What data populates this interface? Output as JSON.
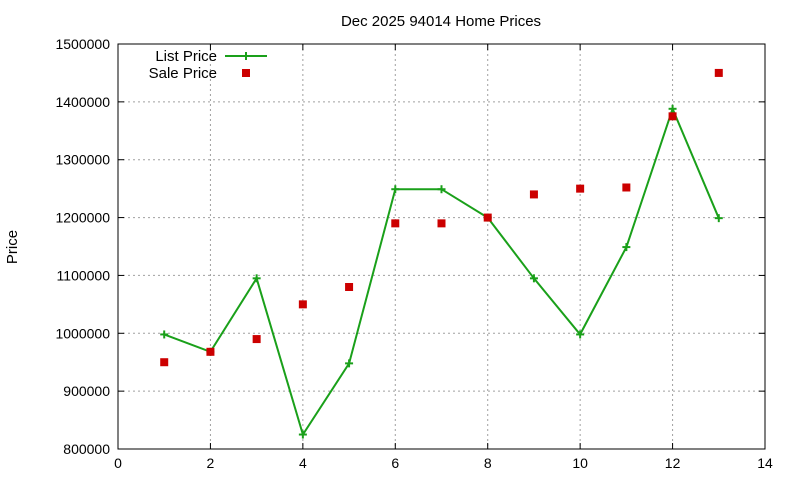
{
  "chart_data": {
    "type": "line",
    "title": "Dec 2025 94014 Home Prices",
    "xlabel": "",
    "ylabel": "Price",
    "xlim": [
      0,
      14
    ],
    "ylim": [
      800000,
      1500000
    ],
    "x_ticks": [
      0,
      2,
      4,
      6,
      8,
      10,
      12,
      14
    ],
    "y_ticks": [
      800000,
      900000,
      1000000,
      1100000,
      1200000,
      1300000,
      1400000,
      1500000
    ],
    "grid": true,
    "legend_position": "top-left",
    "series": [
      {
        "name": "List Price",
        "style": "line-with-plus-markers",
        "color": "#1aa01a",
        "x": [
          1,
          2,
          3,
          4,
          5,
          6,
          7,
          8,
          9,
          10,
          11,
          12,
          13
        ],
        "y": [
          998000,
          968000,
          1095000,
          825000,
          948000,
          1249000,
          1249000,
          1200000,
          1095000,
          998000,
          1149000,
          1388000,
          1199000
        ]
      },
      {
        "name": "Sale Price",
        "style": "square-markers",
        "color": "#cc0000",
        "x": [
          1,
          2,
          3,
          4,
          5,
          6,
          7,
          8,
          9,
          10,
          11,
          12,
          13
        ],
        "y": [
          950000,
          968000,
          990000,
          1050000,
          1080000,
          1190000,
          1190000,
          1200000,
          1240000,
          1250000,
          1252000,
          1375000,
          1450000
        ]
      }
    ]
  }
}
